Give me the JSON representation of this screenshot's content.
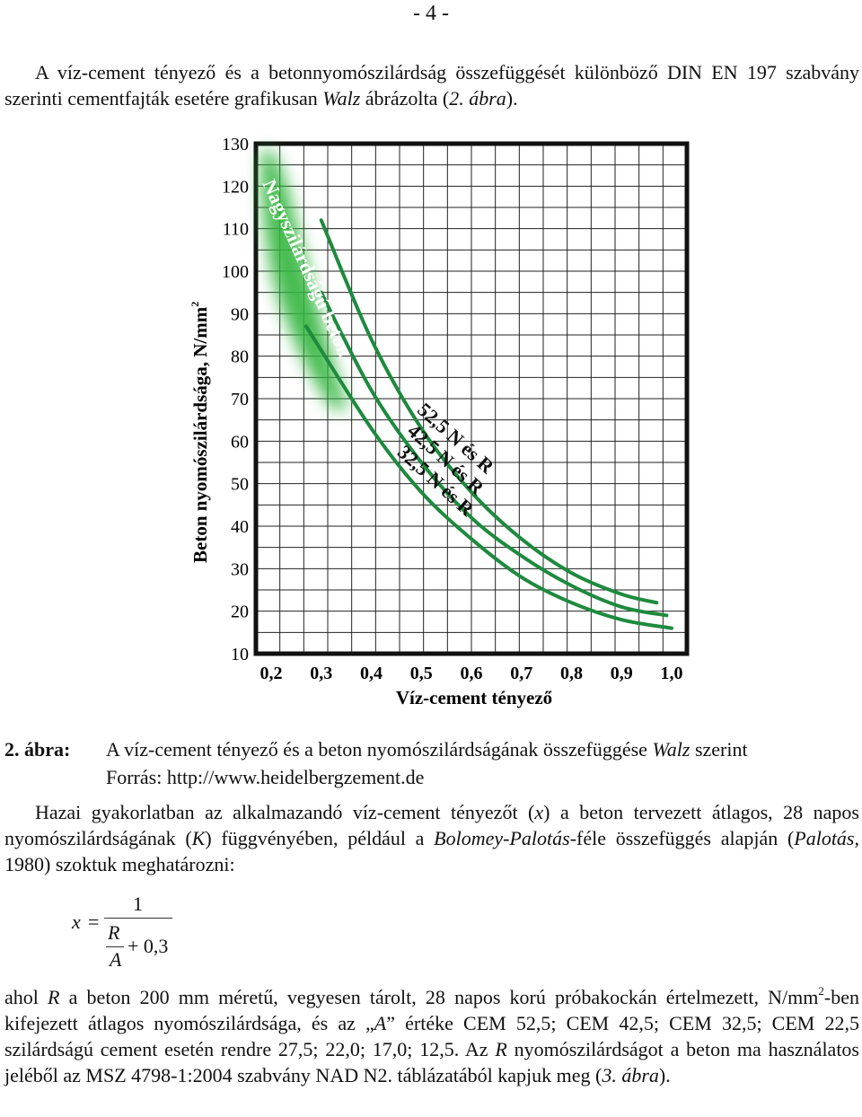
{
  "page_number": "- 4 -",
  "intro": {
    "t1": "A víz-cement tényező és a betonnyomószilárdság összefüggését különböző DIN EN 197 szabvány szerinti cementfajták esetére grafikusan ",
    "walz": "Walz",
    "t2": " ábrázolta (",
    "ref": "2. ábra",
    "t3": ")."
  },
  "chart_data": {
    "type": "line",
    "xlabel": "Víz-cement tényező",
    "ylabel": "Beton nyomószilárdsága, N/mm",
    "ylabel_sup": "2",
    "x_ticks": [
      "0,2",
      "0,3",
      "0,4",
      "0,5",
      "0,6",
      "0,7",
      "0,8",
      "0,9",
      "1,0"
    ],
    "y_ticks": [
      "10",
      "20",
      "30",
      "40",
      "50",
      "60",
      "70",
      "80",
      "90",
      "100",
      "110",
      "120",
      "130"
    ],
    "xlim": [
      0.2,
      1.0
    ],
    "ylim": [
      10,
      130
    ],
    "grid": true,
    "colors": {
      "curves": "#1e8a3e",
      "zone": "#33b53d",
      "grid": "#222222"
    },
    "zone_label": "Nagyszilárdságú beton",
    "series": [
      {
        "name": "52,5 N és R",
        "x": [
          0.3,
          0.4,
          0.5,
          0.6,
          0.7,
          0.8,
          0.9,
          0.97
        ],
        "y": [
          112,
          84,
          63,
          48,
          37,
          29,
          24,
          22
        ]
      },
      {
        "name": "42,5 N és R",
        "x": [
          0.3,
          0.4,
          0.5,
          0.6,
          0.7,
          0.8,
          0.9,
          0.99
        ],
        "y": [
          95,
          72,
          55,
          42,
          33,
          26,
          21,
          19
        ]
      },
      {
        "name": "32,5 N és R",
        "x": [
          0.27,
          0.4,
          0.5,
          0.6,
          0.7,
          0.8,
          0.9,
          1.0
        ],
        "y": [
          87,
          63,
          48,
          37,
          28,
          22,
          18,
          16
        ]
      }
    ]
  },
  "caption": {
    "label": "2. ábra:",
    "t1": "A víz-cement tényező és a beton nyomószilárdságának összefüggése ",
    "walz": "Walz",
    "t2": " szerint",
    "source": "Forrás: http://www.heidelbergzement.de"
  },
  "body2": {
    "t1": "Hazai gyakorlatban az alkalmazandó víz-cement tényezőt (",
    "x": "x",
    "t2": ") a beton tervezett átlagos, 28 napos nyomószilárdságának (",
    "k": "K",
    "t3": ") függvényében, például a ",
    "bp": "Bolomey-Palotás",
    "t4": "-féle összefüggés alapján (",
    "palotas": "Palotás",
    "t5": ", 1980) szoktuk meghatározni:"
  },
  "formula": {
    "lhs": "x",
    "eq": "=",
    "num": "1",
    "r": "R",
    "a": "A",
    "plus": "+ 0,3"
  },
  "body3": {
    "t1": "ahol ",
    "r": "R",
    "t2": " a beton 200 mm méretű, vegyesen tárolt, 28 napos korú próbakockán értelmezett, N/mm",
    "sup": "2",
    "t3": "-ben kifejezett átlagos nyomószilárdsága, és az „",
    "a": "A",
    "t4": "” értéke CEM 52,5; CEM 42,5; CEM 32,5; CEM 22,5 szilárdságú cement esetén rendre 27,5; 22,0; 17,0; 12,5. Az ",
    "r2": "R",
    "t5": " nyomószilárdságot a beton ma használatos jeléből az MSZ 4798-1:2004 szabvány NAD N2. táblázatából kapjuk meg (",
    "ref": "3. ábra",
    "t6": ")."
  }
}
